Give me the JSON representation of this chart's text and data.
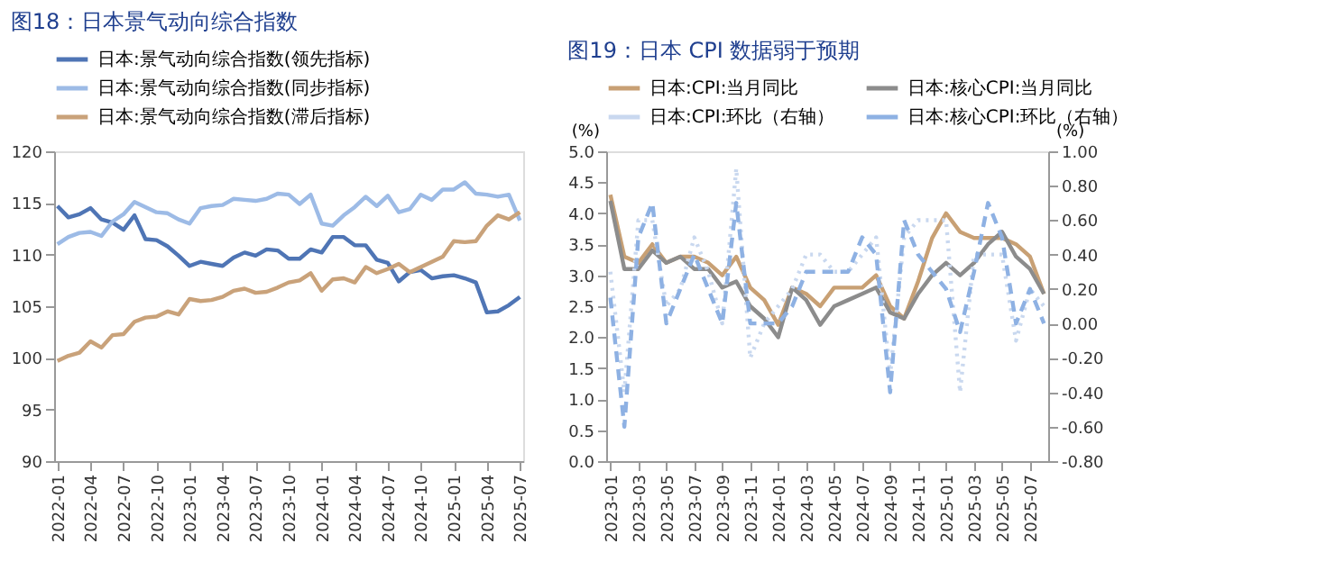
{
  "chart_data": [
    {
      "type": "line",
      "title": "图18：日本景气动向综合指数",
      "categories": [
        "2022-01",
        null,
        null,
        "2022-04",
        null,
        null,
        "2022-07",
        null,
        null,
        "2022-10",
        null,
        null,
        "2023-01",
        null,
        null,
        "2023-04",
        null,
        null,
        "2023-07",
        null,
        null,
        "2023-10",
        null,
        null,
        "2024-01",
        null,
        null,
        "2024-04",
        null,
        null,
        "2024-07",
        null,
        null,
        "2024-10",
        null,
        null,
        "2025-01",
        null,
        null,
        "2025-04",
        null,
        null,
        "2025-07"
      ],
      "series": [
        {
          "name": "日本:景气动向综合指数(领先指标)",
          "color": "#4f75b5",
          "values": [
            114.7,
            113.6,
            113.9,
            114.5,
            113.4,
            113.1,
            112.4,
            113.8,
            111.5,
            111.4,
            110.8,
            109.9,
            108.9,
            109.3,
            109.1,
            108.9,
            109.7,
            110.2,
            109.9,
            110.5,
            110.4,
            109.6,
            109.6,
            110.5,
            110.2,
            111.7,
            111.7,
            110.9,
            110.9,
            109.5,
            109.2,
            107.4,
            108.3,
            108.5,
            107.7,
            107.9,
            108.0,
            107.7,
            107.3,
            104.4,
            104.5,
            105.1,
            105.9
          ]
        },
        {
          "name": "日本:景气动向综合指数(同步指标)",
          "color": "#9dbbe6",
          "values": [
            111.0,
            111.7,
            112.1,
            112.2,
            111.8,
            113.2,
            113.9,
            115.1,
            114.6,
            114.1,
            114.0,
            113.4,
            113.0,
            114.5,
            114.7,
            114.8,
            115.4,
            115.3,
            115.2,
            115.4,
            115.9,
            115.8,
            114.9,
            115.8,
            113.0,
            112.8,
            113.8,
            114.6,
            115.6,
            114.7,
            115.7,
            114.1,
            114.4,
            115.8,
            115.3,
            116.3,
            116.3,
            117.0,
            115.9,
            115.8,
            115.6,
            115.8,
            113.3
          ]
        },
        {
          "name": "日本:景气动向综合指数(滞后指标)",
          "color": "#c9a27a",
          "values": [
            99.7,
            100.2,
            100.5,
            101.6,
            101.0,
            102.2,
            102.3,
            103.5,
            103.9,
            104.0,
            104.5,
            104.2,
            105.7,
            105.5,
            105.6,
            105.9,
            106.5,
            106.7,
            106.3,
            106.4,
            106.8,
            107.3,
            107.5,
            108.2,
            106.5,
            107.6,
            107.7,
            107.3,
            108.8,
            108.2,
            108.6,
            109.1,
            108.3,
            108.8,
            109.3,
            109.8,
            111.3,
            111.2,
            111.3,
            112.8,
            113.8,
            113.4,
            114.1
          ]
        }
      ],
      "ylim": [
        90,
        120
      ],
      "yticks": [
        90,
        95,
        100,
        105,
        110,
        115,
        120
      ],
      "grid": false,
      "legend": "top",
      "line_style": "solid",
      "marker": "none"
    },
    {
      "type": "line",
      "title": "图19：日本 CPI 数据弱于预期",
      "ylabel": "(%)",
      "y2label": "(%)",
      "categories": [
        "2023-01",
        null,
        "2023-03",
        null,
        "2023-05",
        null,
        "2023-07",
        null,
        "2023-09",
        null,
        "2023-11",
        null,
        "2024-01",
        null,
        "2024-03",
        null,
        "2024-05",
        null,
        "2024-07",
        null,
        "2024-09",
        null,
        "2024-11",
        null,
        "2025-01",
        null,
        "2025-03",
        null,
        "2025-05",
        null,
        "2025-07",
        null
      ],
      "series": [
        {
          "name": "日本:CPI:当月同比",
          "color": "#c8a074",
          "line_style": "solid",
          "values": [
            4.3,
            3.3,
            3.2,
            3.5,
            3.2,
            3.3,
            3.3,
            3.2,
            3.0,
            3.3,
            2.8,
            2.6,
            2.2,
            2.8,
            2.7,
            2.5,
            2.8,
            2.8,
            2.8,
            3.0,
            2.5,
            2.3,
            2.9,
            3.6,
            4.0,
            3.7,
            3.6,
            3.6,
            3.6,
            3.5,
            3.3,
            2.7
          ]
        },
        {
          "name": "日本:核心CPI:当月同比",
          "color": "#8c8c8c",
          "line_style": "solid",
          "values": [
            4.2,
            3.1,
            3.1,
            3.4,
            3.2,
            3.3,
            3.1,
            3.1,
            2.8,
            2.9,
            2.5,
            2.3,
            2.0,
            2.8,
            2.6,
            2.2,
            2.5,
            2.6,
            2.7,
            2.8,
            2.4,
            2.3,
            2.7,
            3.0,
            3.2,
            3.0,
            3.2,
            3.5,
            3.7,
            3.3,
            3.1,
            2.7
          ]
        },
        {
          "name": "日本:CPI:环比（右轴）",
          "color": "#c9d8ef",
          "line_style": "dotted",
          "axis": "y2",
          "values": [
            0.3,
            -0.4,
            0.6,
            0.6,
            0.1,
            0.2,
            0.5,
            0.3,
            0.0,
            0.9,
            -0.2,
            0.0,
            0.1,
            0.2,
            0.4,
            0.4,
            0.3,
            0.3,
            0.4,
            0.5,
            -0.3,
            0.5,
            0.6,
            0.6,
            0.6,
            -0.4,
            0.4,
            0.4,
            0.4,
            -0.1,
            0.2,
            0.1
          ]
        },
        {
          "name": "日本:核心CPI:环比（右轴）",
          "color": "#8eb1e3",
          "line_style": "dashed",
          "axis": "y2",
          "values": [
            0.15,
            -0.6,
            0.5,
            0.7,
            0.0,
            0.2,
            0.4,
            0.2,
            0.0,
            0.7,
            0.0,
            0.0,
            0.0,
            0.1,
            0.3,
            0.3,
            0.3,
            0.3,
            0.5,
            0.4,
            -0.4,
            0.6,
            0.4,
            0.3,
            0.2,
            -0.05,
            0.3,
            0.7,
            0.5,
            0.0,
            0.2,
            0.0
          ]
        }
      ],
      "ylim": [
        0,
        5
      ],
      "yticks": [
        {
          "value": 0,
          "label": "0.0"
        },
        0.5,
        {
          "value": 1,
          "label": "1.0"
        },
        1.5,
        {
          "value": 2,
          "label": "2.0"
        },
        2.5,
        {
          "value": 3,
          "label": "3.0"
        },
        3.5,
        {
          "value": 4,
          "label": "4.0"
        },
        4.5,
        {
          "value": 5,
          "label": "5.0"
        }
      ],
      "y2lim": [
        -0.8,
        1.0
      ],
      "y2ticks": [
        {
          "value": -0.8,
          "label": "-0.80"
        },
        {
          "value": -0.6,
          "label": "-0.60"
        },
        {
          "value": -0.4,
          "label": "-0.40"
        },
        {
          "value": -0.2,
          "label": "-0.20"
        },
        {
          "value": 0,
          "label": "0.00"
        },
        {
          "value": 0.2,
          "label": "0.20"
        },
        {
          "value": 0.4,
          "label": "0.40"
        },
        {
          "value": 0.6,
          "label": "0.60"
        },
        {
          "value": 0.8,
          "label": "0.80"
        },
        {
          "value": 1.0,
          "label": "1.00"
        }
      ],
      "grid": false,
      "legend": "top",
      "marker": "none"
    }
  ]
}
